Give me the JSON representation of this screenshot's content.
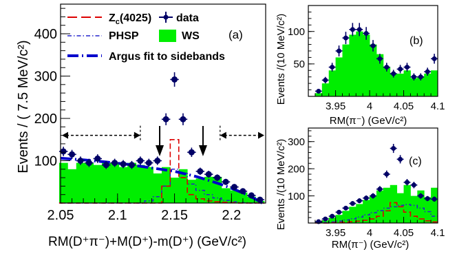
{
  "chart_data": [
    {
      "panel": "(a)",
      "type": "histogram",
      "xlabel": "RM(D⁺π⁻)+M(D⁺)-m(D⁺)  (GeV/c²)",
      "ylabel": "Events / ( 7.5 MeV/c²)",
      "xlim": [
        2.05,
        2.23
      ],
      "ylim": [
        0,
        470
      ],
      "x_ticks": [
        "2.05",
        "2.1",
        "2.15",
        "2.2"
      ],
      "y_ticks": [
        "100",
        "200",
        "300",
        "400"
      ],
      "bins_x": [
        2.0525,
        2.06,
        2.0675,
        2.075,
        2.0825,
        2.09,
        2.0975,
        2.105,
        2.1125,
        2.12,
        2.1275,
        2.135,
        2.1425,
        2.15,
        2.1575,
        2.165,
        2.1725,
        2.18,
        2.1875,
        2.195,
        2.2025,
        2.21,
        2.2175,
        2.225
      ],
      "series": [
        {
          "name": "data",
          "style": "points",
          "color": "#000066",
          "values": [
            122,
            115,
            100,
            95,
            105,
            90,
            95,
            92,
            90,
            100,
            95,
            100,
            198,
            292,
            198,
            120,
            75,
            68,
            60,
            50,
            38,
            28,
            18,
            8
          ]
        },
        {
          "name": "WS",
          "style": "filled",
          "color": "#00ee00",
          "values": [
            95,
            80,
            95,
            95,
            90,
            95,
            95,
            85,
            95,
            90,
            85,
            70,
            85,
            60,
            80,
            55,
            58,
            62,
            62,
            35,
            30,
            25,
            15,
            5
          ]
        },
        {
          "name": "Zₙ(4025)",
          "style": "dashed",
          "color": "#dd0000",
          "values": [
            0,
            0,
            0,
            0,
            0,
            0,
            0,
            0,
            0,
            0,
            0,
            0,
            40,
            150,
            60,
            20,
            10,
            5,
            3,
            2,
            1,
            0,
            0,
            0
          ]
        },
        {
          "name": "PHSP",
          "style": "dotdash",
          "color": "#2222cc",
          "values": [
            0,
            0,
            0,
            0,
            0,
            0,
            0,
            0,
            0,
            0,
            5,
            15,
            40,
            80,
            70,
            45,
            30,
            20,
            12,
            6,
            3,
            1,
            0,
            0
          ]
        },
        {
          "name": "Argus fit to sidebands",
          "style": "thick-dash",
          "color": "#0000cc",
          "x": [
            2.05,
            2.07,
            2.09,
            2.11,
            2.13,
            2.15,
            2.17,
            2.19,
            2.2,
            2.21,
            2.22,
            2.227
          ],
          "values": [
            106,
            102,
            97,
            91,
            83,
            75,
            62,
            45,
            35,
            24,
            11,
            0
          ]
        }
      ],
      "legend": [
        "Z",
        "c",
        "(4025)",
        "data",
        "PHSP",
        "WS",
        "Argus fit to sidebands"
      ],
      "annotations": {
        "panel_label": "(a)",
        "sideband_left": [
          2.05,
          2.12
        ],
        "sideband_right": [
          2.19,
          2.23
        ],
        "sideband_y": 160,
        "signal_arrows_x": [
          2.137,
          2.175
        ]
      }
    },
    {
      "panel": "(b)",
      "type": "histogram",
      "xlabel": "RM(π⁻) (GeV/c²)",
      "ylabel": "Events /(10 MeV/c²)",
      "xlim": [
        3.91,
        4.1
      ],
      "ylim": [
        0,
        140
      ],
      "x_ticks": [
        "3.95",
        "4",
        "4.05",
        "4.1"
      ],
      "y_ticks": [
        "50",
        "100"
      ],
      "bins_x": [
        3.925,
        3.935,
        3.945,
        3.955,
        3.965,
        3.975,
        3.985,
        3.995,
        4.005,
        4.015,
        4.025,
        4.035,
        4.045,
        4.055,
        4.065,
        4.075,
        4.085,
        4.095
      ],
      "series": [
        {
          "name": "data",
          "style": "points",
          "values": [
            8,
            25,
            45,
            70,
            90,
            103,
            103,
            97,
            78,
            58,
            45,
            35,
            42,
            45,
            30,
            30,
            38,
            58
          ]
        },
        {
          "name": "WS",
          "style": "filled",
          "values": [
            5,
            20,
            40,
            60,
            80,
            95,
            100,
            95,
            80,
            65,
            45,
            35,
            35,
            40,
            28,
            30,
            35,
            40
          ]
        }
      ],
      "annotations": {
        "panel_label": "(b)"
      }
    },
    {
      "panel": "(c)",
      "type": "histogram",
      "xlabel": "RM(π⁻) (GeV/c²)",
      "ylabel": "Events /(10 MeV/c²)",
      "xlim": [
        3.91,
        4.1
      ],
      "ylim": [
        0,
        350
      ],
      "x_ticks": [
        "3.95",
        "4",
        "4.05",
        "4.1"
      ],
      "y_ticks": [
        "100",
        "200",
        "300"
      ],
      "bins_x": [
        3.925,
        3.935,
        3.945,
        3.955,
        3.965,
        3.975,
        3.985,
        3.995,
        4.005,
        4.015,
        4.025,
        4.035,
        4.045,
        4.055,
        4.065,
        4.075,
        4.085,
        4.095
      ],
      "series": [
        {
          "name": "data",
          "style": "points",
          "values": [
            5,
            15,
            25,
            40,
            55,
            72,
            82,
            92,
            100,
            125,
            180,
            275,
            235,
            150,
            140,
            100,
            90,
            88
          ]
        },
        {
          "name": "WS",
          "style": "filled",
          "values": [
            5,
            10,
            20,
            30,
            45,
            60,
            70,
            85,
            100,
            120,
            130,
            140,
            110,
            140,
            100,
            120,
            95,
            130
          ]
        },
        {
          "name": "Zₙ(4025)",
          "style": "dashed",
          "values": [
            0,
            0,
            1,
            2,
            3,
            5,
            7,
            10,
            15,
            25,
            45,
            75,
            60,
            40,
            25,
            15,
            8,
            4
          ]
        },
        {
          "name": "PHSP",
          "style": "dotdash",
          "values": [
            1,
            2,
            4,
            7,
            11,
            16,
            22,
            30,
            38,
            46,
            55,
            60,
            65,
            68,
            65,
            55,
            42,
            25
          ]
        }
      ],
      "annotations": {
        "panel_label": "(c)"
      }
    }
  ],
  "panel_a": {
    "ylabel": "Events / ( 7.5 MeV/c²)",
    "xlabel": "RM(D⁺π⁻)+M(D⁺)-m(D⁺)  (GeV/c²)",
    "label": "(a)",
    "legend_z": "Z",
    "legend_z_sub": "c",
    "legend_z_rest": "(4025)",
    "legend_data": "data",
    "legend_phsp": "PHSP",
    "legend_ws": "WS",
    "legend_argus": "Argus fit to sidebands"
  },
  "panel_b": {
    "ylabel": "Events /(10 MeV/c²)",
    "xlabel": "RM(π⁻) (GeV/c²)",
    "label": "(b)"
  },
  "panel_c": {
    "ylabel": "Events /(10 MeV/c²)",
    "xlabel": "RM(π⁻) (GeV/c²)",
    "label": "(c)"
  },
  "colors": {
    "data": "#000066",
    "ws": "#00ee00",
    "zc": "#dd0000",
    "phsp": "#2222cc",
    "argus": "#0000cc",
    "axis": "#000000"
  }
}
